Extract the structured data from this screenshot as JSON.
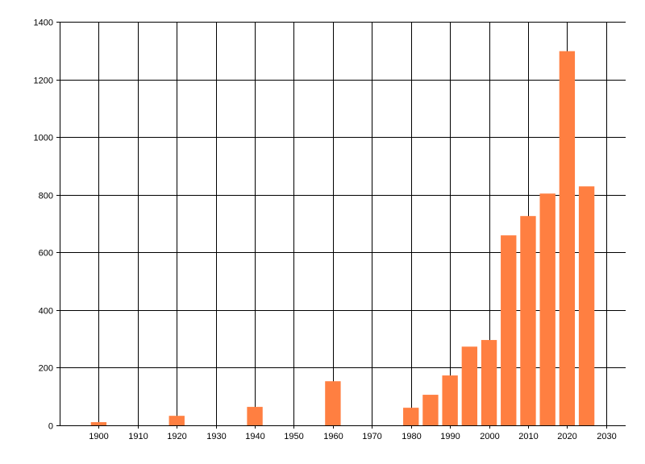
{
  "chart_data": {
    "type": "bar",
    "title": "",
    "xlabel": "",
    "ylabel": "",
    "xlim": [
      1890,
      2035
    ],
    "ylim": [
      0,
      1400
    ],
    "grid": true,
    "bar_color": "#ff7f41",
    "x_ticks": [
      1900,
      1910,
      1920,
      1930,
      1940,
      1950,
      1960,
      1970,
      1980,
      1990,
      2000,
      2010,
      2020,
      2030
    ],
    "y_ticks": [
      0,
      200,
      400,
      600,
      800,
      1000,
      1200,
      1400
    ],
    "x": [
      1900,
      1920,
      1940,
      1960,
      1980,
      1985,
      1990,
      1995,
      2000,
      2005,
      2010,
      2015,
      2020,
      2025
    ],
    "values": [
      11,
      33,
      64,
      153,
      61,
      106,
      173,
      273,
      296,
      659,
      726,
      804,
      1298,
      829
    ]
  }
}
